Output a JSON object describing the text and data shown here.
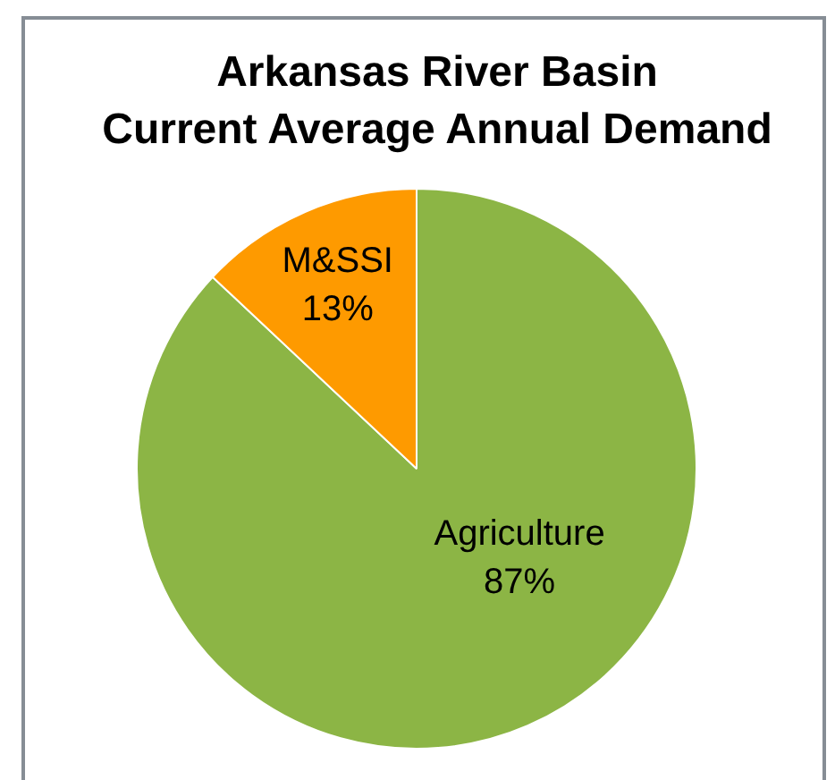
{
  "chart_data": {
    "type": "pie",
    "title": "Arkansas River Basin\nCurrent Average Annual Demand",
    "categories": [
      "Agriculture",
      "M&SSI"
    ],
    "values": [
      87,
      13
    ],
    "colors": [
      "#8cb545",
      "#fe9a00"
    ],
    "value_labels": [
      "87%",
      "13%"
    ]
  }
}
